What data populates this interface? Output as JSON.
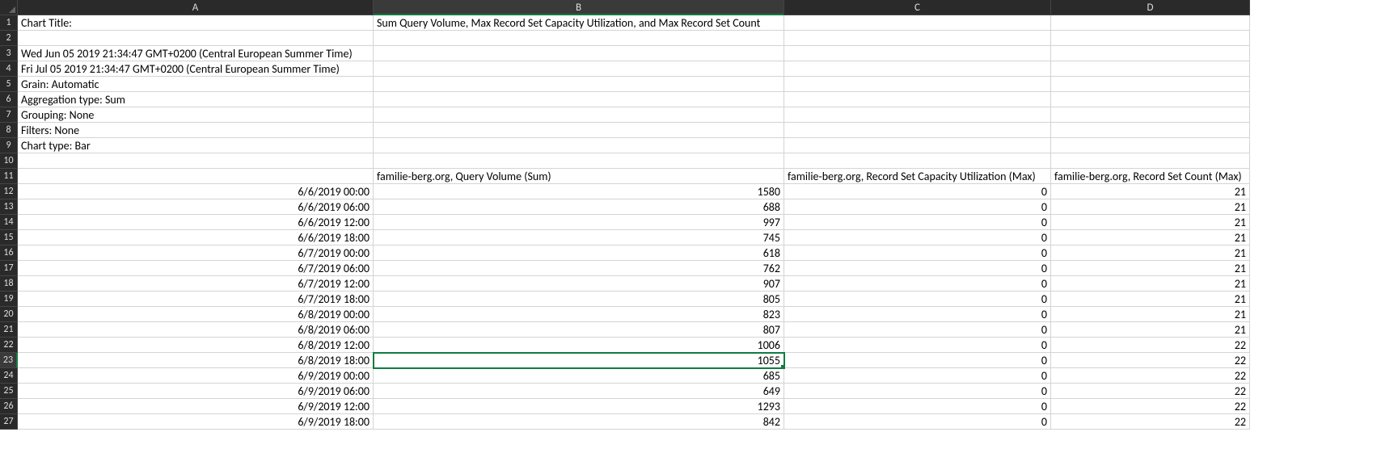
{
  "columns": [
    "A",
    "B",
    "C",
    "D"
  ],
  "active": {
    "row": 23,
    "col": "B"
  },
  "rows": [
    {
      "n": 1,
      "A": "Chart Title:",
      "B": "Sum Query Volume, Max Record Set Capacity Utilization, and Max Record Set Count",
      "C": "",
      "D": ""
    },
    {
      "n": 2,
      "A": "",
      "B": "",
      "C": "",
      "D": ""
    },
    {
      "n": 3,
      "A": "Wed Jun 05 2019 21:34:47 GMT+0200 (Central European Summer Time)",
      "B": "",
      "C": "",
      "D": ""
    },
    {
      "n": 4,
      "A": "Fri Jul 05 2019 21:34:47 GMT+0200 (Central European Summer Time)",
      "B": "",
      "C": "",
      "D": ""
    },
    {
      "n": 5,
      "A": "Grain: Automatic",
      "B": "",
      "C": "",
      "D": ""
    },
    {
      "n": 6,
      "A": "Aggregation type: Sum",
      "B": "",
      "C": "",
      "D": ""
    },
    {
      "n": 7,
      "A": "Grouping: None",
      "B": "",
      "C": "",
      "D": ""
    },
    {
      "n": 8,
      "A": "Filters: None",
      "B": "",
      "C": "",
      "D": ""
    },
    {
      "n": 9,
      "A": "Chart type: Bar",
      "B": "",
      "C": "",
      "D": ""
    },
    {
      "n": 10,
      "A": "",
      "B": "",
      "C": "",
      "D": ""
    },
    {
      "n": 11,
      "A": "",
      "B": "familie-berg.org, Query Volume (Sum)",
      "C": "familie-berg.org, Record Set Capacity Utilization (Max)",
      "D": "familie-berg.org, Record Set Count (Max)"
    },
    {
      "n": 12,
      "A": "6/6/2019 00:00",
      "B": "1580",
      "C": "0",
      "D": "21",
      "num": true
    },
    {
      "n": 13,
      "A": "6/6/2019 06:00",
      "B": "688",
      "C": "0",
      "D": "21",
      "num": true
    },
    {
      "n": 14,
      "A": "6/6/2019 12:00",
      "B": "997",
      "C": "0",
      "D": "21",
      "num": true
    },
    {
      "n": 15,
      "A": "6/6/2019 18:00",
      "B": "745",
      "C": "0",
      "D": "21",
      "num": true
    },
    {
      "n": 16,
      "A": "6/7/2019 00:00",
      "B": "618",
      "C": "0",
      "D": "21",
      "num": true
    },
    {
      "n": 17,
      "A": "6/7/2019 06:00",
      "B": "762",
      "C": "0",
      "D": "21",
      "num": true
    },
    {
      "n": 18,
      "A": "6/7/2019 12:00",
      "B": "907",
      "C": "0",
      "D": "21",
      "num": true
    },
    {
      "n": 19,
      "A": "6/7/2019 18:00",
      "B": "805",
      "C": "0",
      "D": "21",
      "num": true
    },
    {
      "n": 20,
      "A": "6/8/2019 00:00",
      "B": "823",
      "C": "0",
      "D": "21",
      "num": true
    },
    {
      "n": 21,
      "A": "6/8/2019 06:00",
      "B": "807",
      "C": "0",
      "D": "21",
      "num": true
    },
    {
      "n": 22,
      "A": "6/8/2019 12:00",
      "B": "1006",
      "C": "0",
      "D": "22",
      "num": true
    },
    {
      "n": 23,
      "A": "6/8/2019 18:00",
      "B": "1055",
      "C": "0",
      "D": "22",
      "num": true
    },
    {
      "n": 24,
      "A": "6/9/2019 00:00",
      "B": "685",
      "C": "0",
      "D": "22",
      "num": true
    },
    {
      "n": 25,
      "A": "6/9/2019 06:00",
      "B": "649",
      "C": "0",
      "D": "22",
      "num": true
    },
    {
      "n": 26,
      "A": "6/9/2019 12:00",
      "B": "1293",
      "C": "0",
      "D": "22",
      "num": true
    },
    {
      "n": 27,
      "A": "6/9/2019 18:00",
      "B": "842",
      "C": "0",
      "D": "22",
      "num": true
    }
  ]
}
